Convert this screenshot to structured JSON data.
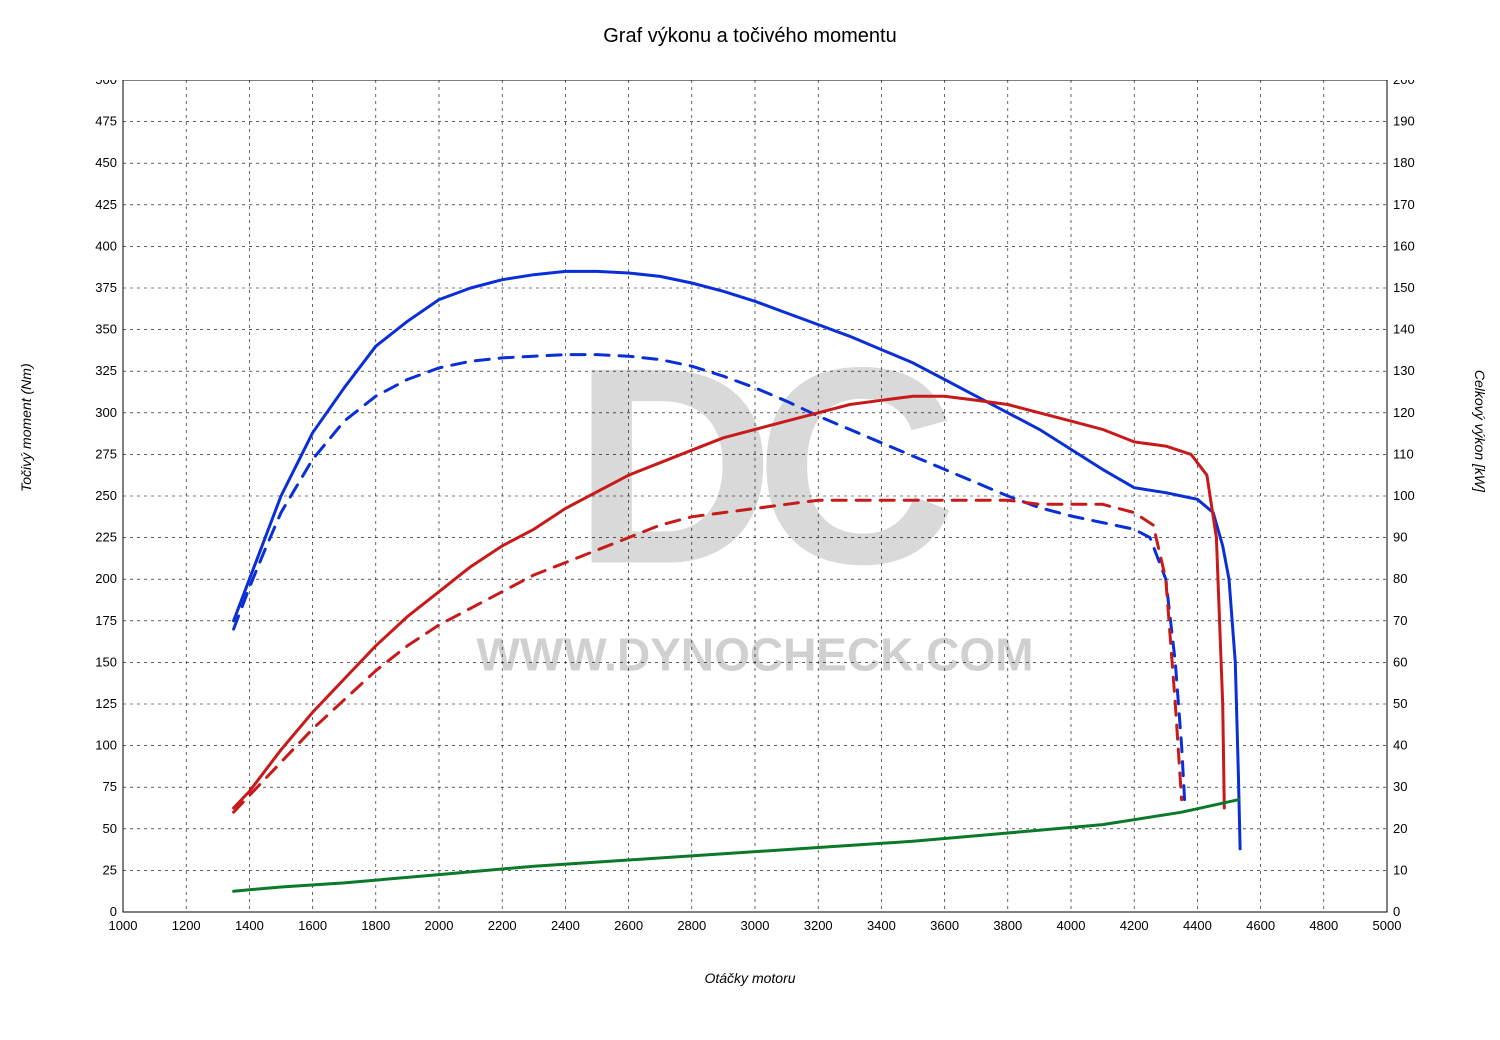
{
  "chart": {
    "type": "line",
    "title": "Graf výkonu a točivého momentu",
    "title_fontsize": 20,
    "xlabel": "Otáčky motoru",
    "ylabel_left": "Točivý moment (Nm)",
    "ylabel_right": "Celkový výkon [kW]",
    "label_fontsize": 14,
    "tick_fontsize": 13,
    "background_color": "#ffffff",
    "grid_color": "#000000",
    "grid_dash": "3,4",
    "axis_color": "#000000",
    "xlim": [
      1000,
      5000
    ],
    "xtick_step": 200,
    "ylim_left": [
      0,
      500
    ],
    "ytick_left_step": 25,
    "ylim_right": [
      0,
      200
    ],
    "ytick_right_step": 10,
    "watermark": {
      "logo_text": "DC",
      "logo_color": "#d9d9d9",
      "logo_fontsize": 280,
      "url_text": "WWW.DYNOCHECK.COM",
      "url_color": "#d0d0d0",
      "url_fontsize": 46
    },
    "series": [
      {
        "name": "torque_tuned",
        "axis": "left",
        "color": "#0a2fd6",
        "width": 3,
        "dash": null,
        "points": [
          [
            1350,
            175
          ],
          [
            1400,
            200
          ],
          [
            1450,
            225
          ],
          [
            1500,
            250
          ],
          [
            1600,
            288
          ],
          [
            1700,
            315
          ],
          [
            1800,
            340
          ],
          [
            1900,
            355
          ],
          [
            2000,
            368
          ],
          [
            2100,
            375
          ],
          [
            2200,
            380
          ],
          [
            2300,
            383
          ],
          [
            2400,
            385
          ],
          [
            2500,
            385
          ],
          [
            2600,
            384
          ],
          [
            2700,
            382
          ],
          [
            2800,
            378
          ],
          [
            2900,
            373
          ],
          [
            3000,
            367
          ],
          [
            3100,
            360
          ],
          [
            3200,
            353
          ],
          [
            3300,
            346
          ],
          [
            3400,
            338
          ],
          [
            3500,
            330
          ],
          [
            3600,
            320
          ],
          [
            3700,
            310
          ],
          [
            3800,
            300
          ],
          [
            3900,
            290
          ],
          [
            4000,
            278
          ],
          [
            4100,
            266
          ],
          [
            4200,
            255
          ],
          [
            4300,
            252
          ],
          [
            4350,
            250
          ],
          [
            4400,
            248
          ],
          [
            4450,
            240
          ],
          [
            4480,
            220
          ],
          [
            4500,
            200
          ],
          [
            4520,
            150
          ],
          [
            4530,
            80
          ],
          [
            4535,
            38
          ]
        ]
      },
      {
        "name": "torque_stock",
        "axis": "left",
        "color": "#0a2fd6",
        "width": 3,
        "dash": "14,10",
        "points": [
          [
            1350,
            170
          ],
          [
            1400,
            195
          ],
          [
            1450,
            218
          ],
          [
            1500,
            240
          ],
          [
            1600,
            272
          ],
          [
            1700,
            295
          ],
          [
            1800,
            310
          ],
          [
            1900,
            320
          ],
          [
            2000,
            327
          ],
          [
            2100,
            331
          ],
          [
            2200,
            333
          ],
          [
            2300,
            334
          ],
          [
            2400,
            335
          ],
          [
            2500,
            335
          ],
          [
            2600,
            334
          ],
          [
            2700,
            332
          ],
          [
            2800,
            328
          ],
          [
            2900,
            322
          ],
          [
            3000,
            315
          ],
          [
            3100,
            307
          ],
          [
            3200,
            298
          ],
          [
            3300,
            290
          ],
          [
            3400,
            282
          ],
          [
            3500,
            274
          ],
          [
            3600,
            266
          ],
          [
            3700,
            258
          ],
          [
            3800,
            250
          ],
          [
            3900,
            243
          ],
          [
            4000,
            238
          ],
          [
            4100,
            234
          ],
          [
            4200,
            230
          ],
          [
            4250,
            225
          ],
          [
            4300,
            200
          ],
          [
            4330,
            150
          ],
          [
            4350,
            100
          ],
          [
            4360,
            65
          ]
        ]
      },
      {
        "name": "power_tuned",
        "axis": "right",
        "color": "#c71a1a",
        "width": 3,
        "dash": null,
        "points": [
          [
            1350,
            25
          ],
          [
            1400,
            29
          ],
          [
            1500,
            39
          ],
          [
            1600,
            48
          ],
          [
            1700,
            56
          ],
          [
            1800,
            64
          ],
          [
            1900,
            71
          ],
          [
            2000,
            77
          ],
          [
            2100,
            83
          ],
          [
            2200,
            88
          ],
          [
            2300,
            92
          ],
          [
            2400,
            97
          ],
          [
            2500,
            101
          ],
          [
            2600,
            105
          ],
          [
            2700,
            108
          ],
          [
            2800,
            111
          ],
          [
            2900,
            114
          ],
          [
            3000,
            116
          ],
          [
            3100,
            118
          ],
          [
            3200,
            120
          ],
          [
            3300,
            122
          ],
          [
            3400,
            123
          ],
          [
            3500,
            124
          ],
          [
            3600,
            124
          ],
          [
            3700,
            123
          ],
          [
            3800,
            122
          ],
          [
            3900,
            120
          ],
          [
            4000,
            118
          ],
          [
            4100,
            116
          ],
          [
            4200,
            113
          ],
          [
            4300,
            112
          ],
          [
            4380,
            110
          ],
          [
            4430,
            105
          ],
          [
            4460,
            90
          ],
          [
            4480,
            50
          ],
          [
            4485,
            25
          ]
        ]
      },
      {
        "name": "power_stock",
        "axis": "right",
        "color": "#c71a1a",
        "width": 3,
        "dash": "14,10",
        "points": [
          [
            1350,
            24
          ],
          [
            1400,
            28
          ],
          [
            1500,
            36
          ],
          [
            1600,
            44
          ],
          [
            1700,
            51
          ],
          [
            1800,
            58
          ],
          [
            1900,
            64
          ],
          [
            2000,
            69
          ],
          [
            2100,
            73
          ],
          [
            2200,
            77
          ],
          [
            2300,
            81
          ],
          [
            2400,
            84
          ],
          [
            2500,
            87
          ],
          [
            2600,
            90
          ],
          [
            2700,
            93
          ],
          [
            2800,
            95
          ],
          [
            2900,
            96
          ],
          [
            3000,
            97
          ],
          [
            3100,
            98
          ],
          [
            3200,
            99
          ],
          [
            3300,
            99
          ],
          [
            3400,
            99
          ],
          [
            3500,
            99
          ],
          [
            3600,
            99
          ],
          [
            3700,
            99
          ],
          [
            3800,
            99
          ],
          [
            3900,
            98
          ],
          [
            4000,
            98
          ],
          [
            4100,
            98
          ],
          [
            4200,
            96
          ],
          [
            4260,
            93
          ],
          [
            4300,
            80
          ],
          [
            4330,
            50
          ],
          [
            4350,
            27
          ]
        ]
      },
      {
        "name": "losses",
        "axis": "right",
        "color": "#0a7a2a",
        "width": 3,
        "dash": null,
        "points": [
          [
            1350,
            5
          ],
          [
            1500,
            6
          ],
          [
            1700,
            7
          ],
          [
            2000,
            9
          ],
          [
            2300,
            11
          ],
          [
            2600,
            12.5
          ],
          [
            2900,
            14
          ],
          [
            3200,
            15.5
          ],
          [
            3500,
            17
          ],
          [
            3800,
            19
          ],
          [
            4100,
            21
          ],
          [
            4350,
            24
          ],
          [
            4530,
            27
          ]
        ]
      }
    ]
  }
}
